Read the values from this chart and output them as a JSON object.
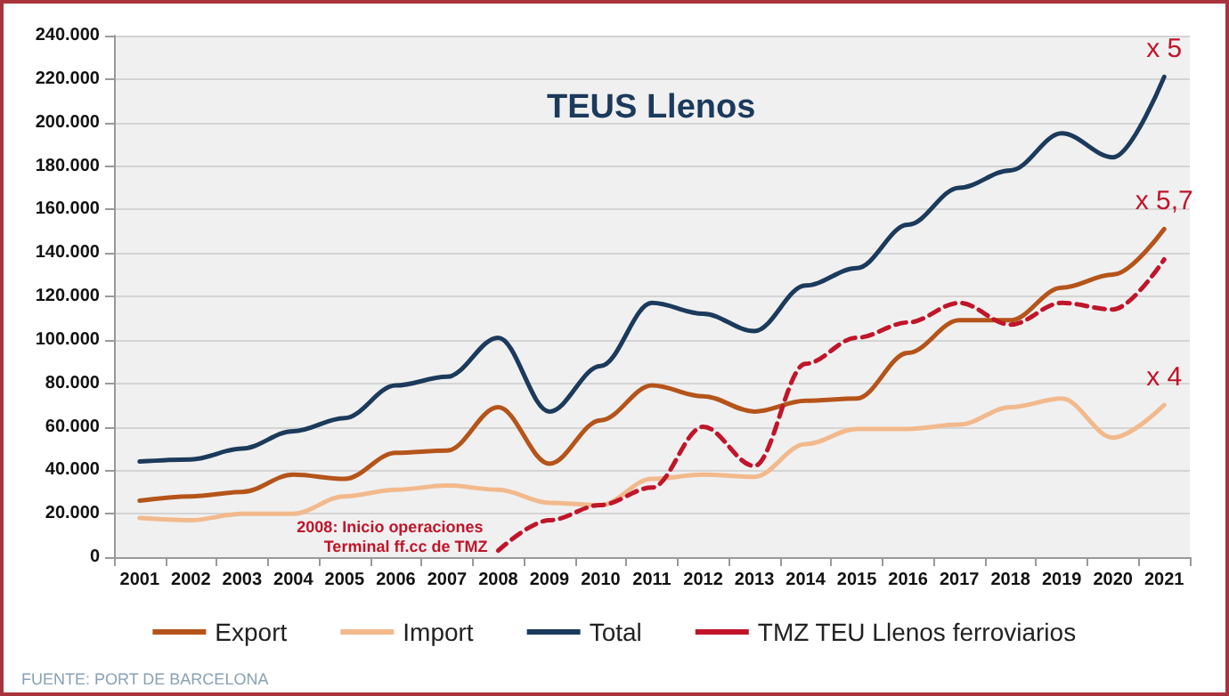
{
  "chart_data": {
    "type": "line",
    "title": "TEUS Llenos",
    "categories": [
      "2001",
      "2002",
      "2003",
      "2004",
      "2005",
      "2006",
      "2007",
      "2008",
      "2009",
      "2010",
      "2011",
      "2012",
      "2013",
      "2014",
      "2015",
      "2016",
      "2017",
      "2018",
      "2019",
      "2020",
      "2021"
    ],
    "series": [
      {
        "name": "Export",
        "color": "#b5541a",
        "line_style": "solid",
        "values": [
          26000,
          28000,
          30000,
          38000,
          36000,
          48000,
          49000,
          69000,
          43000,
          63000,
          79000,
          74000,
          67000,
          72000,
          73000,
          94000,
          109000,
          109000,
          124000,
          130000,
          151000
        ]
      },
      {
        "name": "Import",
        "color": "#f2b98c",
        "line_style": "solid",
        "values": [
          18000,
          17000,
          20000,
          20000,
          28000,
          31000,
          33000,
          31000,
          25000,
          24000,
          36000,
          38000,
          37000,
          52000,
          59000,
          59000,
          61000,
          69000,
          73000,
          55000,
          70000
        ]
      },
      {
        "name": "Total",
        "color": "#1b3a5c",
        "line_style": "solid",
        "values": [
          44000,
          45000,
          50000,
          58000,
          64000,
          79000,
          83000,
          101000,
          67000,
          88000,
          117000,
          112000,
          104000,
          125000,
          133000,
          153000,
          170000,
          178000,
          195000,
          184000,
          221000
        ]
      },
      {
        "name": "TMZ TEU Llenos ferroviarios",
        "color": "#c0152a",
        "line_style": "dashed",
        "values": [
          null,
          null,
          null,
          null,
          null,
          null,
          null,
          3000,
          17000,
          24000,
          32000,
          60000,
          42000,
          89000,
          101000,
          108000,
          117000,
          107000,
          117000,
          114000,
          137000
        ]
      }
    ],
    "ylim": [
      0,
      240000
    ],
    "yticks": [
      0,
      {
        "value": 20000,
        "label": "20.000"
      },
      {
        "value": 40000,
        "label": "40.000"
      },
      {
        "value": 60000,
        "label": "60.000"
      },
      {
        "value": 80000,
        "label": "80.000"
      },
      {
        "value": 100000,
        "label": "100.000"
      },
      {
        "value": 120000,
        "label": "120.000"
      },
      {
        "value": 140000,
        "label": "140.000"
      },
      {
        "value": 160000,
        "label": "160.000"
      },
      {
        "value": 180000,
        "label": "180.000"
      },
      {
        "value": 200000,
        "label": "200.000"
      },
      {
        "value": 220000,
        "label": "220.000"
      },
      {
        "value": 240000,
        "label": "240.000"
      }
    ],
    "grid": "y",
    "legend": "bottom",
    "marker": "none",
    "annotations": [
      {
        "text": "x 5",
        "x": "2021",
        "y": 221000
      },
      {
        "text": "x 5,7",
        "x": "2021",
        "y": 151000
      },
      {
        "text": "x 4",
        "x": "2021",
        "y": 70000
      },
      {
        "text": "2008: Inicio operaciones Terminal ff.cc de TMZ",
        "x": "2008",
        "y": 3000
      },
      "FUENTE: PORT DE BARCELONA"
    ]
  }
}
